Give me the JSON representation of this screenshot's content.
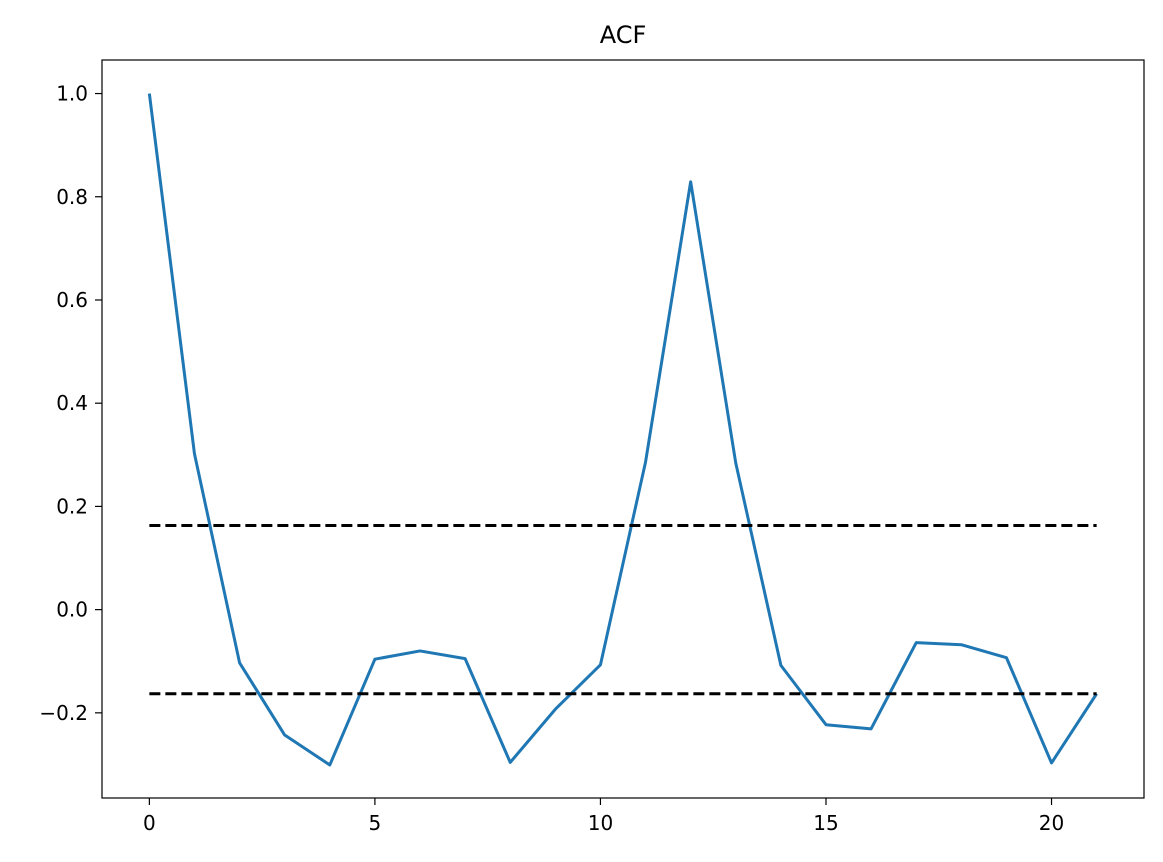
{
  "chart_data": {
    "type": "line",
    "title": "ACF",
    "xlabel": "",
    "ylabel": "",
    "xlim": [
      -1.05,
      22.05
    ],
    "ylim": [
      -0.365,
      1.065
    ],
    "xticks": [
      0,
      5,
      10,
      15,
      20
    ],
    "yticks": [
      -0.2,
      0.0,
      0.2,
      0.4,
      0.6,
      0.8,
      1.0
    ],
    "xtick_labels": [
      "0",
      "5",
      "10",
      "15",
      "20"
    ],
    "ytick_labels": [
      "−0.2",
      "0.0",
      "0.2",
      "0.4",
      "0.6",
      "0.8",
      "1.0"
    ],
    "grid": false,
    "series": [
      {
        "color": "#1f77b4",
        "style": "solid",
        "x": [
          0,
          1,
          2,
          3,
          4,
          5,
          6,
          7,
          8,
          9,
          10,
          11,
          12,
          13,
          14,
          15,
          16,
          17,
          18,
          19,
          20,
          21
        ],
        "y": [
          1.0,
          0.302,
          -0.103,
          -0.243,
          -0.301,
          -0.096,
          -0.08,
          -0.095,
          -0.296,
          -0.193,
          -0.107,
          0.286,
          0.829,
          0.284,
          -0.108,
          -0.223,
          -0.231,
          -0.064,
          -0.068,
          -0.093,
          -0.297,
          -0.163
        ]
      },
      {
        "color": "#000000",
        "style": "dashed",
        "x": [
          0,
          21
        ],
        "y": [
          0.163,
          0.163
        ]
      },
      {
        "color": "#000000",
        "style": "dashed",
        "x": [
          0,
          21
        ],
        "y": [
          -0.163,
          -0.163
        ]
      }
    ]
  }
}
